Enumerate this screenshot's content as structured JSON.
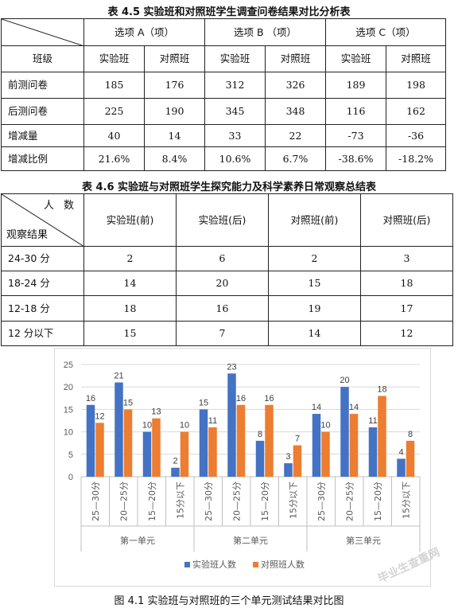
{
  "table1": {
    "caption": "表 4.5 实验班和对照班学生调查问卷结果对比分析表",
    "groups": [
      "选项 A（项）",
      "选项 B （项）",
      "选项 C（项）"
    ],
    "class_label": "班级",
    "subheaders": [
      "实验班",
      "对照班",
      "实验班",
      "对照班",
      "实验班",
      "对照班"
    ],
    "rows": [
      {
        "label": "前测问卷",
        "values": [
          "185",
          "176",
          "312",
          "326",
          "189",
          "198"
        ]
      },
      {
        "label": "后测问卷",
        "values": [
          "225",
          "190",
          "345",
          "348",
          "116",
          "162"
        ]
      },
      {
        "label": "增减量",
        "values": [
          "40",
          "14",
          "33",
          "22",
          "-73",
          "-36"
        ]
      },
      {
        "label": "增减比例",
        "values": [
          "21.6%",
          "8.4%",
          "10.6%",
          "6.7%",
          "-38.6%",
          "-18.2%"
        ]
      }
    ]
  },
  "table2": {
    "caption": "表 4.6 实验班与对照班学生探究能力及科学素养日常观察总结表",
    "corner_top": "人 数",
    "corner_bottom": "观察结果",
    "headers": [
      "实验班(前)",
      "实验班(后)",
      "对照班(前)",
      "对照班(后)"
    ],
    "rows": [
      {
        "label": "24-30 分",
        "values": [
          "2",
          "6",
          "2",
          "3"
        ]
      },
      {
        "label": "18-24 分",
        "values": [
          "14",
          "20",
          "15",
          "18"
        ]
      },
      {
        "label": "12-18 分",
        "values": [
          "18",
          "16",
          "19",
          "17"
        ]
      },
      {
        "label": "12 分以下",
        "values": [
          "15",
          "7",
          "14",
          "12"
        ]
      }
    ]
  },
  "chart_data": {
    "type": "bar",
    "groups": [
      "第一单元",
      "第二单元",
      "第三单元"
    ],
    "categories": [
      "25—30分",
      "20—25分",
      "15—20分",
      "15分以下"
    ],
    "series": [
      {
        "name": "实验班人数",
        "color": "#4472C4",
        "values": [
          [
            16,
            21,
            10,
            2
          ],
          [
            15,
            23,
            8,
            3
          ],
          [
            14,
            20,
            11,
            4
          ]
        ]
      },
      {
        "name": "对照班人数",
        "color": "#ED7D31",
        "values": [
          [
            12,
            15,
            13,
            10
          ],
          [
            11,
            16,
            16,
            7
          ],
          [
            10,
            14,
            18,
            8
          ]
        ]
      }
    ],
    "ylim": [
      0,
      25
    ],
    "yticks": [
      0,
      5,
      10,
      15,
      20,
      25
    ],
    "grid": true,
    "legend": "bottom"
  },
  "figure_caption": "图 4.1 实验班与对照班的三个单元测试结果对比图",
  "watermark": "毕业生查重网"
}
